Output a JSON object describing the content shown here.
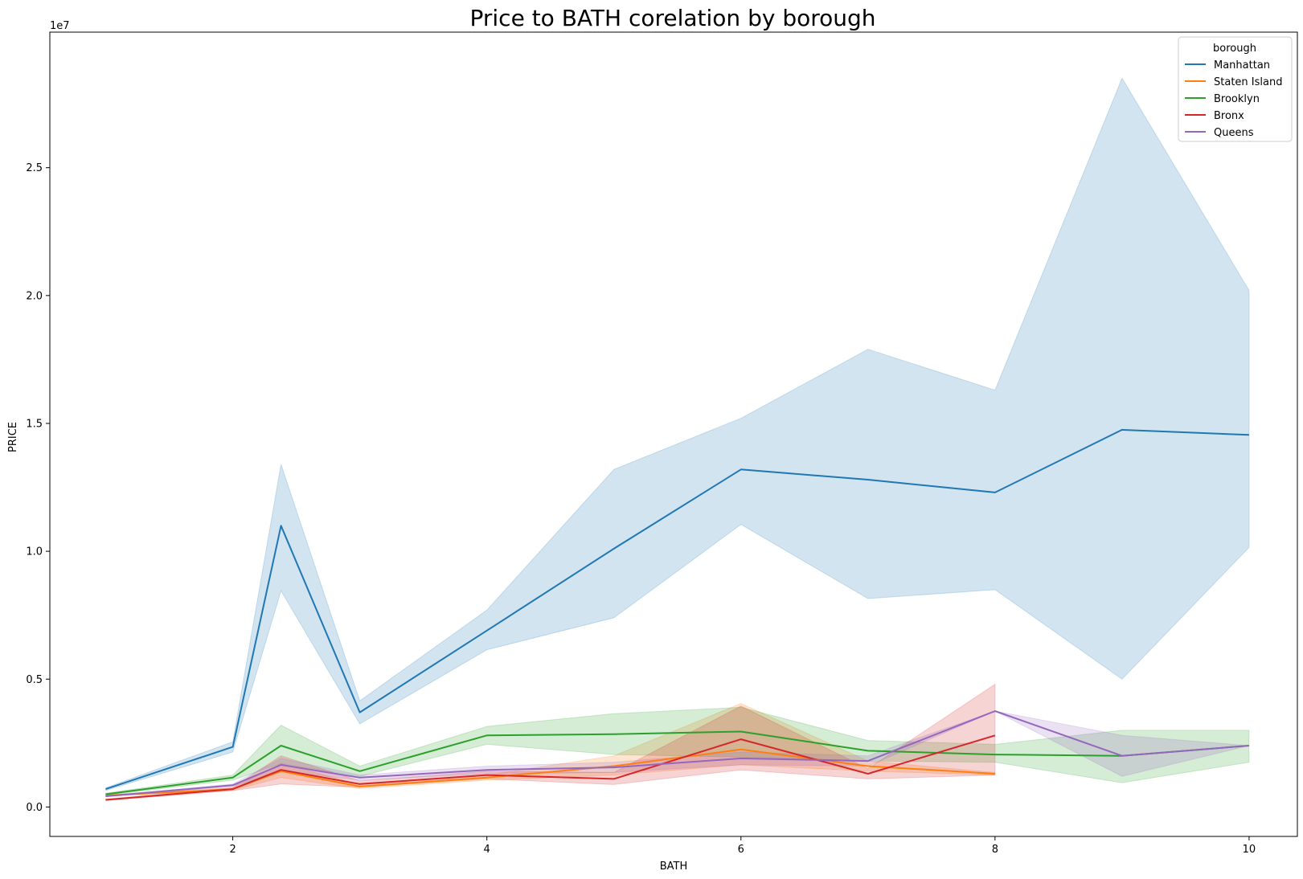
{
  "chart_data": {
    "type": "line",
    "title": "Price to BATH corelation by borough",
    "xlabel": "BATH",
    "ylabel": "PRICE",
    "y_offset_label": "1e7",
    "xlim": [
      0.56,
      10.38
    ],
    "ylim": [
      -1150000,
      30300000
    ],
    "x_ticks": [
      2,
      4,
      6,
      8,
      10
    ],
    "x_tick_labels": [
      "2",
      "4",
      "6",
      "8",
      "10"
    ],
    "y_ticks": [
      0,
      5000000,
      10000000,
      15000000,
      20000000,
      25000000
    ],
    "y_tick_labels": [
      "0.0",
      "0.5",
      "1.0",
      "1.5",
      "2.0",
      "2.5"
    ],
    "grid": false,
    "legend": {
      "title": "borough",
      "position": "top-right"
    },
    "series": [
      {
        "name": "Manhattan",
        "color": "#1f77b4",
        "x": [
          1,
          2,
          2.38,
          3,
          4,
          5,
          6,
          7,
          8,
          9,
          10
        ],
        "y": [
          700000,
          2350000,
          11000000,
          3700000,
          6900000,
          10100000,
          13200000,
          12800000,
          12300000,
          14750000,
          14550000
        ],
        "ci_low": [
          650000,
          2150000,
          8450000,
          3250000,
          6150000,
          7400000,
          11050000,
          8150000,
          8500000,
          5000000,
          10150000
        ],
        "ci_high": [
          750000,
          2550000,
          13400000,
          4150000,
          7700000,
          13200000,
          15200000,
          17900000,
          16300000,
          28500000,
          20200000
        ]
      },
      {
        "name": "Staten Island",
        "color": "#ff7f0e",
        "x": [
          1,
          2,
          2.38,
          3,
          4,
          5,
          6,
          7,
          8
        ],
        "y": [
          450000,
          700000,
          1400000,
          800000,
          1150000,
          1600000,
          2250000,
          1600000,
          1300000
        ],
        "ci_low": [
          420000,
          650000,
          1150000,
          720000,
          1050000,
          1250000,
          1650000,
          1400000,
          1250000
        ],
        "ci_high": [
          480000,
          750000,
          1700000,
          880000,
          1250000,
          2000000,
          4050000,
          1800000,
          1350000
        ]
      },
      {
        "name": "Brooklyn",
        "color": "#2ca02c",
        "x": [
          1,
          2,
          2.38,
          3,
          4,
          5,
          6,
          7,
          8,
          9,
          10
        ],
        "y": [
          500000,
          1150000,
          2400000,
          1400000,
          2800000,
          2850000,
          2950000,
          2200000,
          2050000,
          2000000,
          2400000
        ],
        "ci_low": [
          460000,
          1050000,
          1700000,
          1200000,
          2450000,
          2050000,
          1950000,
          1800000,
          1750000,
          950000,
          1750000
        ],
        "ci_high": [
          540000,
          1250000,
          3200000,
          1600000,
          3150000,
          3650000,
          3900000,
          2600000,
          2450000,
          3000000,
          3000000
        ]
      },
      {
        "name": "Bronx",
        "color": "#d62728",
        "x": [
          1,
          2,
          2.38,
          3,
          4,
          5,
          6,
          7,
          8
        ],
        "y": [
          280000,
          700000,
          1450000,
          900000,
          1250000,
          1100000,
          2650000,
          1300000,
          2800000
        ],
        "ci_low": [
          250000,
          640000,
          900000,
          780000,
          1100000,
          880000,
          1450000,
          1100000,
          1250000
        ],
        "ci_high": [
          310000,
          760000,
          2000000,
          1020000,
          1400000,
          1350000,
          3950000,
          1500000,
          4800000
        ]
      },
      {
        "name": "Queens",
        "color": "#9467bd",
        "x": [
          1,
          2,
          2.38,
          3,
          4,
          5,
          6,
          7,
          8,
          9,
          10
        ],
        "y": [
          420000,
          850000,
          1650000,
          1150000,
          1450000,
          1550000,
          1900000,
          1800000,
          3750000,
          2000000,
          2400000
        ],
        "ci_low": [
          400000,
          800000,
          1400000,
          1050000,
          1300000,
          1350000,
          1650000,
          1600000,
          3750000,
          1200000,
          2400000
        ],
        "ci_high": [
          440000,
          900000,
          1900000,
          1250000,
          1600000,
          1750000,
          2150000,
          2000000,
          3750000,
          2800000,
          2400000
        ]
      }
    ]
  }
}
